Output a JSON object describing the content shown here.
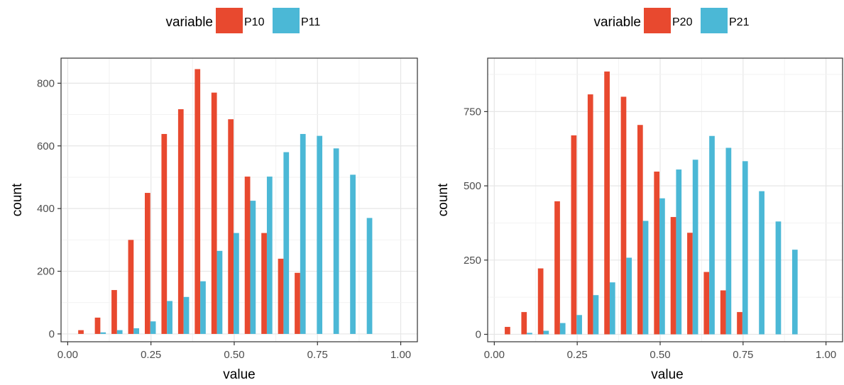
{
  "chart_data": [
    {
      "type": "bar",
      "xlabel": "value",
      "ylabel": "count",
      "xlim": [
        -0.02,
        1.05
      ],
      "ylim": [
        -25,
        880
      ],
      "xticks": [
        "0.00",
        "0.25",
        "0.50",
        "0.75",
        "1.00"
      ],
      "xtick_values": [
        0,
        0.25,
        0.5,
        0.75,
        1.0
      ],
      "yticks": [
        "0",
        "200",
        "400",
        "600",
        "800"
      ],
      "ytick_values": [
        0,
        200,
        400,
        600,
        800
      ],
      "legend": {
        "title": "variable",
        "placement": "top"
      },
      "series": [
        {
          "name": "P10",
          "color": "#E8492F",
          "x": [
            0.05,
            0.1,
            0.15,
            0.2,
            0.25,
            0.3,
            0.35,
            0.4,
            0.45,
            0.5,
            0.55,
            0.6,
            0.65,
            0.7
          ],
          "values": [
            12,
            52,
            140,
            300,
            450,
            638,
            717,
            845,
            770,
            685,
            502,
            322,
            240,
            195
          ]
        },
        {
          "name": "P11",
          "color": "#4BB8D6",
          "x": [
            0.1,
            0.15,
            0.2,
            0.25,
            0.3,
            0.35,
            0.4,
            0.45,
            0.5,
            0.55,
            0.6,
            0.65,
            0.7,
            0.75,
            0.8,
            0.85,
            0.9
          ],
          "values": [
            5,
            12,
            18,
            40,
            105,
            118,
            168,
            265,
            322,
            425,
            502,
            580,
            638,
            632,
            592,
            508,
            370
          ]
        }
      ],
      "series_alt": []
    },
    {
      "type": "bar",
      "xlabel": "value",
      "ylabel": "count",
      "xlim": [
        -0.02,
        1.05
      ],
      "ylim": [
        -25,
        930
      ],
      "xticks": [
        "0.00",
        "0.25",
        "0.50",
        "0.75",
        "1.00"
      ],
      "xtick_values": [
        0,
        0.25,
        0.5,
        0.75,
        1.0
      ],
      "yticks": [
        "0",
        "250",
        "500",
        "750"
      ],
      "ytick_values": [
        0,
        250,
        500,
        750
      ],
      "legend": {
        "title": "variable",
        "placement": "top"
      },
      "series": [
        {
          "name": "P20",
          "color": "#E8492F",
          "x": [],
          "values": []
        },
        {
          "name": "P21",
          "color": "#4BB8D6",
          "x": [],
          "values": []
        }
      ]
    }
  ]
}
